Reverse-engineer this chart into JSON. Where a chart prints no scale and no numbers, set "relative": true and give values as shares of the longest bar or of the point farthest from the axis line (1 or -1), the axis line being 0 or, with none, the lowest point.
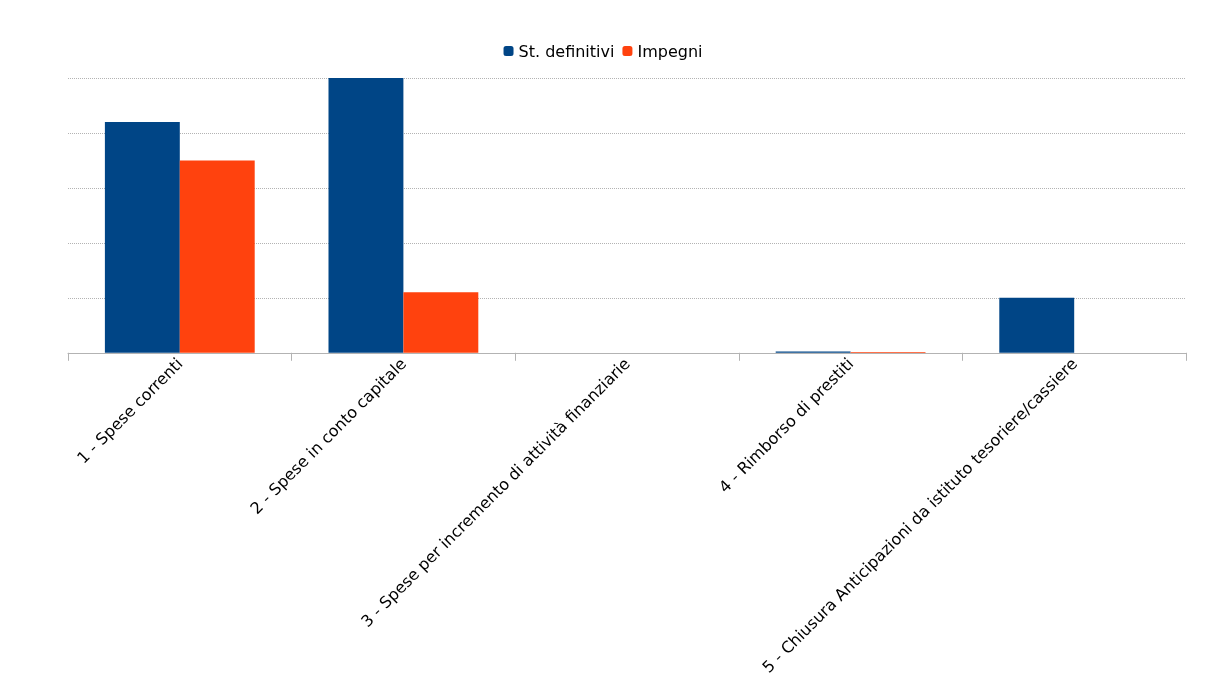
{
  "chart_data": {
    "type": "bar",
    "relative": true,
    "categories": [
      "1 - Spese correnti",
      "2 - Spese in conto capitale",
      "3 - Spese per incremento di attività finanziarie",
      "4 - Rimborso di prestiti",
      "5 - Chiusura Anticipazioni da istituto tesoriere/cassiere"
    ],
    "series": [
      {
        "name": "St. definitivi",
        "color": "#004586",
        "values": [
          0.84,
          1,
          0,
          0.005,
          0.2
        ]
      },
      {
        "name": "Impegni",
        "color": "#ff420e",
        "values": [
          0.7,
          0.22,
          0,
          0.003,
          0
        ]
      }
    ],
    "grid": "y",
    "legend": "top"
  }
}
